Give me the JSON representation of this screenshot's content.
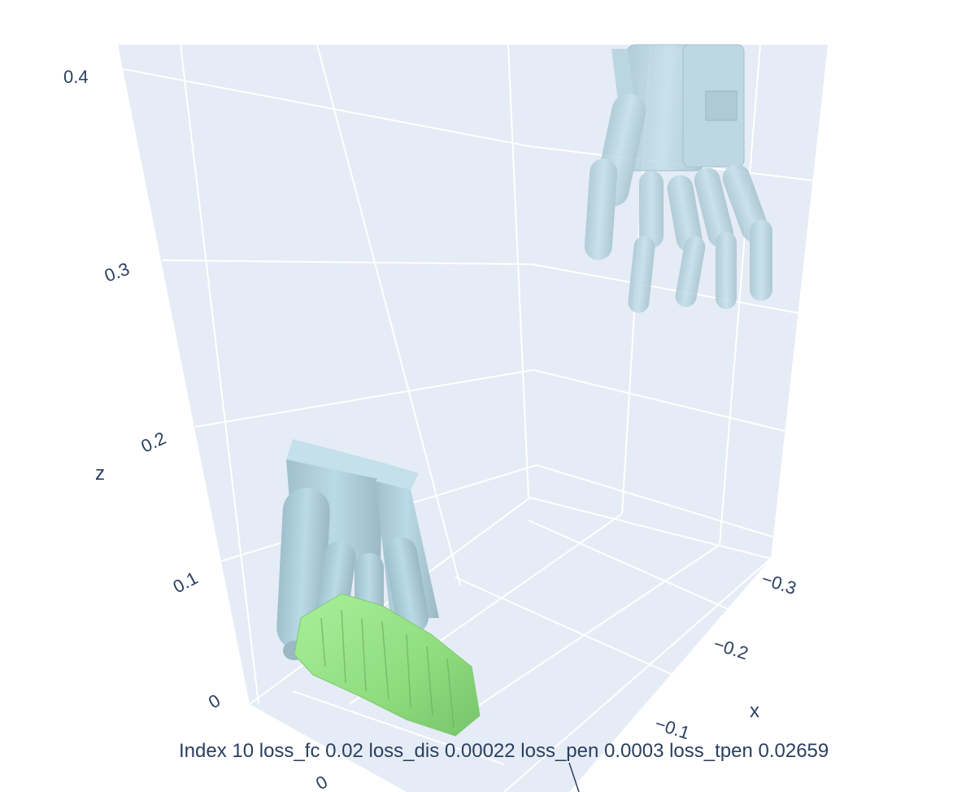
{
  "chart_data": {
    "type": "scatter3d",
    "title": "",
    "caption": "Index 10  loss_fc 0.02  loss_dis 0.00022  loss_pen 0.0003  loss_tpen 0.02659",
    "axes": {
      "x": {
        "title": "x",
        "ticks": [
          "−0.3",
          "−0.2",
          "−0.1"
        ]
      },
      "y": {
        "title": "",
        "ticks": [
          "0"
        ]
      },
      "z": {
        "title": "z",
        "ticks": [
          "0",
          "0.1",
          "0.2",
          "0.3",
          "0.4"
        ]
      }
    },
    "grid": true,
    "legend": "none",
    "colors": {
      "scene_background": "#e5ecf6",
      "grid": "#ffffff",
      "hand": "#add8e6",
      "object": "#90ee90",
      "text": "#2a3f5f"
    },
    "meshes": [
      {
        "kind": "hand",
        "state": "grasping-object"
      },
      {
        "kind": "hand",
        "state": "initial-pose"
      },
      {
        "kind": "object",
        "state": "target"
      }
    ]
  }
}
